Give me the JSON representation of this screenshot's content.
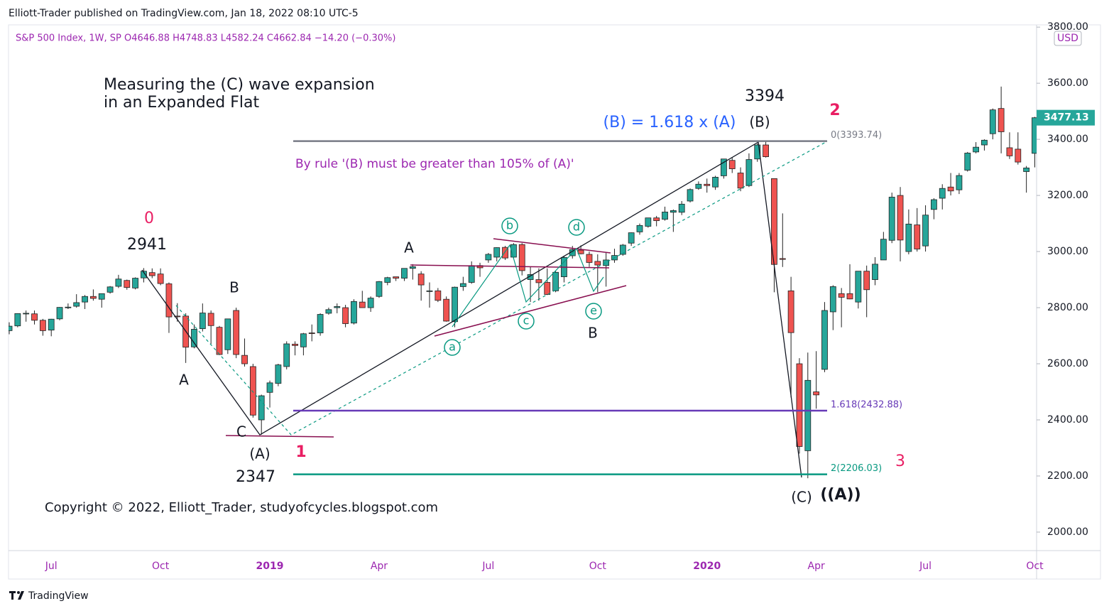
{
  "header": {
    "author_line": "Elliott-Trader published on TradingView.com, Jan 18, 2022 08:10 UTC-5",
    "symbol_line": "S&P 500 Index, 1W, SP  O4646.88  H4748.83  L4582.24  C4662.84  −14.20 (−0.30%)",
    "currency": "USD"
  },
  "footer": {
    "brand": "TradingView"
  },
  "chart_data": {
    "type": "candlestick",
    "categories": [
      null,
      null,
      null,
      null,
      null,
      "Jul",
      null,
      null,
      null,
      null,
      null,
      null,
      null,
      null,
      null,
      null,
      null,
      null,
      "Oct",
      null,
      null,
      null,
      null,
      null,
      null,
      null,
      null,
      null,
      null,
      null,
      null,
      "2019",
      null,
      null,
      null,
      null,
      null,
      null,
      null,
      null,
      null,
      null,
      null,
      null,
      "Apr",
      null,
      null,
      null,
      null,
      null,
      null,
      null,
      null,
      null,
      null,
      null,
      null,
      "Jul",
      null,
      null,
      null,
      null,
      null,
      null,
      null,
      null,
      null,
      null,
      null,
      null,
      "Oct",
      null,
      null,
      null,
      null,
      null,
      null,
      null,
      null,
      null,
      null,
      null,
      null,
      "2020",
      null,
      null,
      null,
      null,
      null,
      null,
      null,
      null,
      null,
      null,
      null,
      null,
      "Apr",
      null,
      null,
      null,
      null,
      null,
      null,
      null,
      null,
      null,
      null,
      null,
      null,
      "Jul",
      null,
      null,
      null,
      null,
      null,
      null,
      null,
      null,
      null,
      null,
      null,
      null,
      "Oct"
    ],
    "open": [
      2718,
      2735,
      2780,
      2778,
      2755,
      2720,
      2760,
      2800,
      2805,
      2820,
      2840,
      2830,
      2855,
      2876,
      2897,
      2870,
      2906,
      2925,
      2920,
      2885,
      2770,
      2770,
      2660,
      2725,
      2780,
      2730,
      2650,
      2790,
      2630,
      2590,
      2400,
      2498,
      2530,
      2590,
      2670,
      2660,
      2710,
      2710,
      2780,
      2800,
      2800,
      2745,
      2820,
      2800,
      2840,
      2890,
      2910,
      2905,
      2940,
      2920,
      2860,
      2860,
      2830,
      2750,
      2875,
      2890,
      2950,
      2970,
      2980,
      3015,
      2980,
      3025,
      2900,
      2900,
      2890,
      2860,
      2910,
      2985,
      3005,
      2990,
      2965,
      2950,
      2970,
      2990,
      3030,
      3070,
      3090,
      3120,
      3115,
      3140,
      3140,
      3180,
      3225,
      3240,
      3230,
      3270,
      3325,
      3280,
      3235,
      3330,
      3380,
      3260,
      2975,
      2860,
      2600,
      2290,
      2500,
      2580,
      2785,
      2850,
      2850,
      2820,
      2930,
      2900,
      2970,
      3040,
      3200,
      3000,
      3095,
      3020,
      3150,
      3190,
      3230,
      3220,
      3290,
      3355,
      3380,
      3420,
      3510,
      3370,
      3365,
      3285,
      3350
    ],
    "high": [
      2748,
      2780,
      2790,
      2790,
      2760,
      2760,
      2802,
      2815,
      2848,
      2845,
      2865,
      2850,
      2877,
      2917,
      2900,
      2908,
      2941,
      2940,
      2940,
      2890,
      2816,
      2780,
      2740,
      2815,
      2790,
      2735,
      2760,
      2800,
      2690,
      2600,
      2490,
      2540,
      2600,
      2680,
      2680,
      2710,
      2740,
      2780,
      2800,
      2815,
      2810,
      2830,
      2860,
      2840,
      2895,
      2910,
      2910,
      2940,
      2955,
      2930,
      2890,
      2870,
      2840,
      2875,
      2910,
      2965,
      2960,
      2995,
      3015,
      3020,
      3030,
      3030,
      2945,
      2940,
      2940,
      2930,
      2985,
      3020,
      3022,
      3000,
      2990,
      2995,
      3010,
      3027,
      3068,
      3100,
      3120,
      3127,
      3160,
      3150,
      3180,
      3225,
      3250,
      3260,
      3270,
      3330,
      3337,
      3300,
      3350,
      3385,
      3394,
      3260,
      3136,
      2910,
      2620,
      2640,
      2645,
      2820,
      2880,
      2870,
      2955,
      2930,
      2950,
      2980,
      3070,
      3210,
      3230,
      3150,
      3155,
      3165,
      3190,
      3240,
      3280,
      3280,
      3355,
      3390,
      3400,
      3510,
      3588,
      3425,
      3425,
      3305,
      3480
    ],
    "low": [
      2705,
      2730,
      2750,
      2740,
      2700,
      2698,
      2755,
      2795,
      2800,
      2795,
      2825,
      2800,
      2850,
      2870,
      2864,
      2865,
      2890,
      2905,
      2880,
      2710,
      2750,
      2603,
      2655,
      2715,
      2670,
      2631,
      2635,
      2620,
      2590,
      2408,
      2347,
      2444,
      2520,
      2580,
      2630,
      2630,
      2680,
      2700,
      2775,
      2780,
      2730,
      2740,
      2800,
      2785,
      2835,
      2880,
      2895,
      2895,
      2900,
      2825,
      2800,
      2820,
      2750,
      2730,
      2860,
      2885,
      2910,
      2960,
      2965,
      2970,
      2975,
      2915,
      2820,
      2825,
      2845,
      2855,
      2890,
      2975,
      2990,
      2945,
      2855,
      2875,
      2960,
      2985,
      3020,
      3060,
      3085,
      3090,
      3110,
      3070,
      3130,
      3175,
      3220,
      3210,
      3220,
      3260,
      3280,
      3215,
      3230,
      3320,
      3335,
      2855,
      2945,
      2480,
      2280,
      2192,
      2440,
      2570,
      2720,
      2730,
      2830,
      2797,
      2766,
      2880,
      2970,
      3030,
      2965,
      2990,
      3000,
      3000,
      3115,
      3150,
      3200,
      3205,
      3285,
      3350,
      3360,
      3400,
      3350,
      3330,
      3310,
      3210,
      3300
    ],
    "close": [
      2734,
      2779,
      2780,
      2755,
      2718,
      2759,
      2801,
      2802,
      2818,
      2840,
      2833,
      2850,
      2874,
      2902,
      2872,
      2905,
      2930,
      2914,
      2886,
      2767,
      2768,
      2659,
      2723,
      2781,
      2736,
      2633,
      2760,
      2633,
      2600,
      2417,
      2486,
      2532,
      2596,
      2671,
      2665,
      2707,
      2708,
      2776,
      2793,
      2804,
      2743,
      2822,
      2800,
      2834,
      2893,
      2907,
      2905,
      2940,
      2946,
      2881,
      2860,
      2826,
      2752,
      2873,
      2886,
      2950,
      2942,
      2990,
      3014,
      2977,
      3025,
      2932,
      2918,
      2889,
      2847,
      2926,
      2979,
      3007,
      2992,
      2961,
      2952,
      2970,
      2986,
      3023,
      3067,
      3093,
      3120,
      3110,
      3141,
      3146,
      3169,
      3221,
      3240,
      3235,
      3265,
      3330,
      3295,
      3226,
      3328,
      3380,
      3338,
      2954,
      2972,
      2711,
      2305,
      2541,
      2489,
      2790,
      2875,
      2837,
      2831,
      2930,
      2864,
      2955,
      3044,
      3194,
      3041,
      3098,
      3009,
      3130,
      3185,
      3225,
      3216,
      3271,
      3351,
      3372,
      3397,
      3505,
      3427,
      3341,
      3319,
      3298,
      3477
    ],
    "up_color": "#26a69a",
    "down_color": "#ef5350",
    "ylim": [
      1934,
      3808
    ],
    "yticks": [
      {
        "value": 2000,
        "label": "2000.00"
      },
      {
        "value": 2200,
        "label": "2200.00"
      },
      {
        "value": 2400,
        "label": "2400.00"
      },
      {
        "value": 2600,
        "label": "2600.00"
      },
      {
        "value": 2800,
        "label": "2800.00"
      },
      {
        "value": 3000,
        "label": "3000.00"
      },
      {
        "value": 3200,
        "label": "3200.00"
      },
      {
        "value": 3400,
        "label": "3400.00"
      },
      {
        "value": 3600,
        "label": "3600.00"
      },
      {
        "value": 3800,
        "label": "3800.00"
      }
    ],
    "last_price": 3477.13,
    "fib_levels": [
      {
        "value": 3393.74,
        "label": "0(3393.74)",
        "color": "#787b86"
      },
      {
        "value": 2432.88,
        "label": "1.618(2432.88)",
        "color": "#673ab7"
      },
      {
        "value": 2206.03,
        "label": "2(2206.03)",
        "color": "#089981"
      }
    ],
    "annotations": [
      "Measuring the (C) wave expansion",
      "in an Expanded Flat",
      "0",
      "2941",
      "B",
      "A",
      "C",
      "(A)",
      "1",
      "2347",
      "A",
      "b",
      "d",
      "a",
      "c",
      "e",
      "B",
      "3394",
      "(B)",
      "(B) = 1.618 x (A)",
      "2",
      "By rule '(B) must be greater than 105% of (A)'",
      "3",
      "(C)",
      "((A))",
      "Copyright © 2022, Elliott_Trader, studyofcycles.blogspot.com"
    ]
  }
}
